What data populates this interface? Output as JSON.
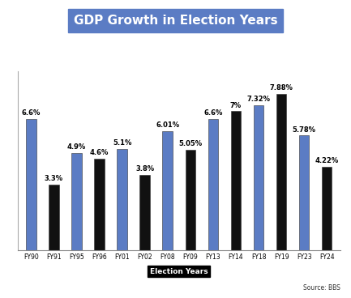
{
  "chart_data": {
    "type": "bar",
    "title": "GDP Growth in Election Years",
    "categories": [
      "FY90",
      "FY91",
      "FY95",
      "FY96",
      "FY01",
      "FY02",
      "FY08",
      "FY09",
      "FY13",
      "FY14",
      "FY18",
      "FY19",
      "FY23",
      "FY24"
    ],
    "values": [
      6.6,
      3.3,
      4.9,
      4.6,
      5.1,
      3.8,
      6.01,
      5.05,
      6.6,
      7,
      7.32,
      7.88,
      5.78,
      4.22
    ],
    "value_labels": [
      "6.6%",
      "3.3%",
      "4.9%",
      "4.6%",
      "5.1%",
      "3.8%",
      "6.01%",
      "5.05%",
      "6.6%",
      "7%",
      "7.32%",
      "7.88%",
      "5.78%",
      "4.22%"
    ],
    "colors": [
      "#5b7cc4",
      "#111111",
      "#5b7cc4",
      "#111111",
      "#5b7cc4",
      "#111111",
      "#5b7cc4",
      "#111111",
      "#5b7cc4",
      "#111111",
      "#5b7cc4",
      "#111111",
      "#5b7cc4",
      "#111111"
    ],
    "ylim": [
      0,
      9
    ],
    "data_labels": true,
    "tick_labels": "x",
    "xlabel": "Election Years",
    "annotations": [
      "Source: BBS"
    ]
  }
}
